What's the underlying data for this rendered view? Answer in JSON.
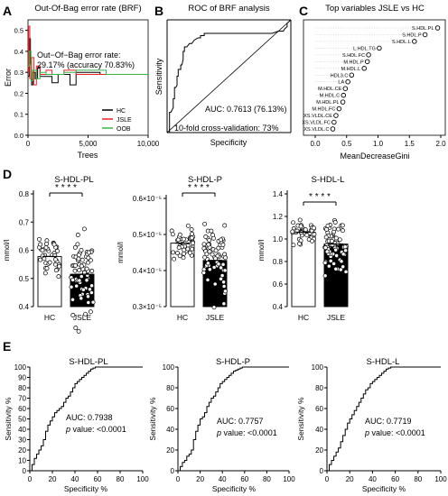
{
  "panel_letters": [
    "A",
    "B",
    "C",
    "D",
    "E"
  ],
  "chart_data": [
    {
      "id": "A",
      "type": "line",
      "title": "Out-Of-Bag error rate (BRF)",
      "xlabel": "Trees",
      "ylabel": "Error",
      "x_ticks": [
        "0",
        "5,000",
        "10,000"
      ],
      "y_ticks": [
        "0.0",
        "0.1",
        "0.2",
        "0.3",
        "0.4",
        "0.5"
      ],
      "xlim": [
        0,
        10000
      ],
      "ylim": [
        0,
        0.55
      ],
      "annotation": [
        "Out−Of−Bag error rate:",
        "29.17% (accuracy 70.83%)"
      ],
      "legend": [
        "HC",
        "JSLE",
        "OOB"
      ],
      "legend_position": "bottom-right",
      "series": [
        {
          "name": "HC",
          "color": "#000000",
          "x": [
            0,
            100,
            200,
            300,
            400,
            600,
            800,
            1000,
            1500,
            2000,
            2500,
            3000,
            3500,
            4000,
            6000,
            8000,
            10000
          ],
          "values": [
            0.28,
            0.46,
            0.34,
            0.24,
            0.3,
            0.27,
            0.32,
            0.28,
            0.28,
            0.25,
            0.29,
            0.29,
            0.24,
            0.3,
            0.29,
            0.29,
            0.29
          ]
        },
        {
          "name": "JSLE",
          "color": "#e8202a",
          "x": [
            0,
            50,
            150,
            300,
            500,
            700,
            1000,
            1500,
            2000,
            3000,
            4000,
            6000,
            8000,
            10000
          ],
          "values": [
            0.3,
            0.52,
            0.27,
            0.37,
            0.24,
            0.33,
            0.29,
            0.31,
            0.29,
            0.31,
            0.29,
            0.29,
            0.29,
            0.29
          ]
        },
        {
          "name": "OOB",
          "color": "#39b54a",
          "x": [
            0,
            100,
            250,
            400,
            700,
            1000,
            1500,
            2000,
            3000,
            4000,
            6000,
            6500,
            8000,
            10000
          ],
          "values": [
            0.33,
            0.4,
            0.26,
            0.31,
            0.27,
            0.3,
            0.29,
            0.29,
            0.3,
            0.31,
            0.31,
            0.29,
            0.29,
            0.29
          ]
        }
      ]
    },
    {
      "id": "B",
      "type": "line",
      "title": "ROC of BRF analysis",
      "xlabel": "Specificity",
      "ylabel": "Sensitivity",
      "annotation": [
        "AUC: 0.7613 (76.13%)",
        "10-fold cross-validation: 73%"
      ],
      "x": [
        1.0,
        0.98,
        0.98,
        0.97,
        0.95,
        0.95,
        0.94,
        0.94,
        0.93,
        0.92,
        0.92,
        0.91,
        0.91,
        0.89,
        0.89,
        0.88,
        0.87,
        0.87,
        0.86,
        0.86,
        0.84,
        0.82,
        0.8,
        0.78,
        0.75,
        0.73,
        0.73,
        0.7,
        0.7,
        0.65,
        0.6,
        0.55,
        0.5,
        0.45,
        0.4,
        0.35,
        0.3,
        0.25,
        0.2,
        0.15,
        0.1,
        0.06,
        0.05,
        0.03,
        0.03,
        0.0
      ],
      "values": [
        0.0,
        0.0,
        0.18,
        0.18,
        0.22,
        0.3,
        0.3,
        0.4,
        0.4,
        0.42,
        0.5,
        0.5,
        0.56,
        0.56,
        0.6,
        0.6,
        0.65,
        0.72,
        0.72,
        0.76,
        0.76,
        0.79,
        0.79,
        0.82,
        0.84,
        0.84,
        0.86,
        0.86,
        0.88,
        0.88,
        0.88,
        0.88,
        0.88,
        0.88,
        0.88,
        0.88,
        0.88,
        0.88,
        0.88,
        0.88,
        0.9,
        0.9,
        0.92,
        0.94,
        0.97,
        1.0
      ]
    },
    {
      "id": "C",
      "type": "scatter",
      "title": "Top variables JSLE vs HC",
      "xlabel": "MeanDecreaseGini",
      "x_ticks": [
        "0.0",
        "0.5",
        "1.0",
        "1.5",
        "2.0"
      ],
      "xlim": [
        0,
        2.1
      ],
      "categories": [
        "S.HDL.PL",
        "S.HDL.P",
        "S.HDL.L",
        "L.HDL.TG",
        "S.HDL.FC",
        "M.HDL.P",
        "M.HDL.L",
        "HDL3.C",
        "LA",
        "M.HDL.CE",
        "M.HDL.C",
        "M.HDL.PL",
        "M.HDL.FC",
        "XS.VLDL.CE",
        "XS.VLDL.FC",
        "XS.VLDL.C"
      ],
      "values": [
        1.95,
        1.75,
        1.58,
        1.02,
        0.85,
        0.83,
        0.78,
        0.58,
        0.52,
        0.48,
        0.45,
        0.44,
        0.38,
        0.33,
        0.3,
        0.28
      ]
    },
    {
      "id": "D1",
      "type": "bar",
      "title": "S-HDL-PL",
      "ylabel": "mmol/l",
      "categories": [
        "HC",
        "JSLE"
      ],
      "values": [
        0.578,
        0.515
      ],
      "y_ticks": [
        "0.4",
        "0.5",
        "0.6",
        "0.7",
        "0.8"
      ],
      "ylim": [
        0.4,
        0.8
      ],
      "significance": "* * * *"
    },
    {
      "id": "D2",
      "type": "bar",
      "title": "S-HDL-P",
      "ylabel": "mmol/l",
      "categories": [
        "HC",
        "JSLE"
      ],
      "values": [
        0.476,
        0.428
      ],
      "y_ticks": [
        "0.3×10⁻⁵",
        "0.4×10⁻⁵",
        "0.5×10⁻⁵",
        "0.6×10⁻⁵"
      ],
      "ylim": [
        0.3,
        0.6
      ],
      "significance": "* * * *"
    },
    {
      "id": "D3",
      "type": "bar",
      "title": "S-HDL-L",
      "ylabel": "mmol/l",
      "categories": [
        "HC",
        "JSLE"
      ],
      "values": [
        1.06,
        0.955
      ],
      "y_ticks": [
        "0.4",
        "0.6",
        "0.8",
        "1.0",
        "1.2",
        "1.4"
      ],
      "ylim": [
        0.4,
        1.4
      ],
      "significance": "* * * *"
    },
    {
      "id": "E1",
      "type": "line",
      "title": "S-HDL-PL",
      "xlabel": "Specificity %",
      "ylabel": "Sensitivity %",
      "x_ticks": [
        "0",
        "20",
        "40",
        "60",
        "80",
        "100"
      ],
      "y_ticks": [
        "0",
        "10",
        "20",
        "30",
        "40",
        "50",
        "60",
        "70",
        "80",
        "90",
        "100"
      ],
      "annotation": [
        "AUC: 0.7938",
        "p value:  <0.0001"
      ],
      "x": [
        0,
        2,
        4,
        6,
        8,
        10,
        12,
        14,
        16,
        18,
        20,
        22,
        24,
        26,
        28,
        30,
        32,
        34,
        36,
        38,
        40,
        42,
        44,
        46,
        48,
        50,
        52,
        54,
        56,
        58,
        60,
        100
      ],
      "values": [
        0,
        6,
        12,
        16,
        20,
        24,
        30,
        38,
        44,
        48,
        52,
        56,
        58,
        60,
        62,
        66,
        70,
        72,
        76,
        80,
        84,
        86,
        88,
        90,
        92,
        94,
        96,
        98,
        99,
        100,
        100,
        100
      ]
    },
    {
      "id": "E2",
      "type": "line",
      "title": "S-HDL-P",
      "xlabel": "Specificity %",
      "ylabel": "Sensitivity %",
      "x_ticks": [
        "0",
        "20",
        "40",
        "60",
        "80",
        "100"
      ],
      "y_ticks": [
        "0",
        "20",
        "40",
        "60",
        "80",
        "100"
      ],
      "annotation": [
        "AUC: 0.7757",
        "p value:  <0.0001"
      ],
      "x": [
        0,
        2,
        4,
        6,
        8,
        10,
        12,
        14,
        16,
        18,
        20,
        22,
        24,
        26,
        28,
        30,
        32,
        34,
        36,
        38,
        40,
        42,
        44,
        46,
        48,
        50,
        52,
        54,
        56,
        58,
        60,
        62,
        100
      ],
      "values": [
        0,
        4,
        8,
        10,
        14,
        16,
        20,
        30,
        38,
        44,
        50,
        52,
        56,
        62,
        66,
        70,
        72,
        76,
        80,
        84,
        86,
        88,
        90,
        92,
        94,
        96,
        97,
        98,
        99,
        100,
        100,
        100,
        100
      ]
    },
    {
      "id": "E3",
      "type": "line",
      "title": "S-HDL-L",
      "xlabel": "Specificity %",
      "ylabel": "Sensitivity %",
      "x_ticks": [
        "0",
        "20",
        "40",
        "60",
        "80",
        "100"
      ],
      "y_ticks": [
        "0",
        "20",
        "40",
        "60",
        "80",
        "100"
      ],
      "annotation": [
        "AUC: 0.7719",
        "p value:  <0.0001"
      ],
      "x": [
        0,
        2,
        4,
        6,
        8,
        10,
        12,
        14,
        16,
        18,
        20,
        22,
        24,
        26,
        28,
        30,
        32,
        34,
        36,
        38,
        40,
        42,
        44,
        46,
        48,
        50,
        52,
        54,
        56,
        58,
        60,
        100
      ],
      "values": [
        0,
        6,
        10,
        14,
        18,
        22,
        28,
        34,
        40,
        46,
        50,
        54,
        58,
        62,
        66,
        70,
        74,
        78,
        80,
        84,
        86,
        88,
        90,
        92,
        94,
        96,
        98,
        99,
        100,
        100,
        100,
        100
      ]
    }
  ]
}
